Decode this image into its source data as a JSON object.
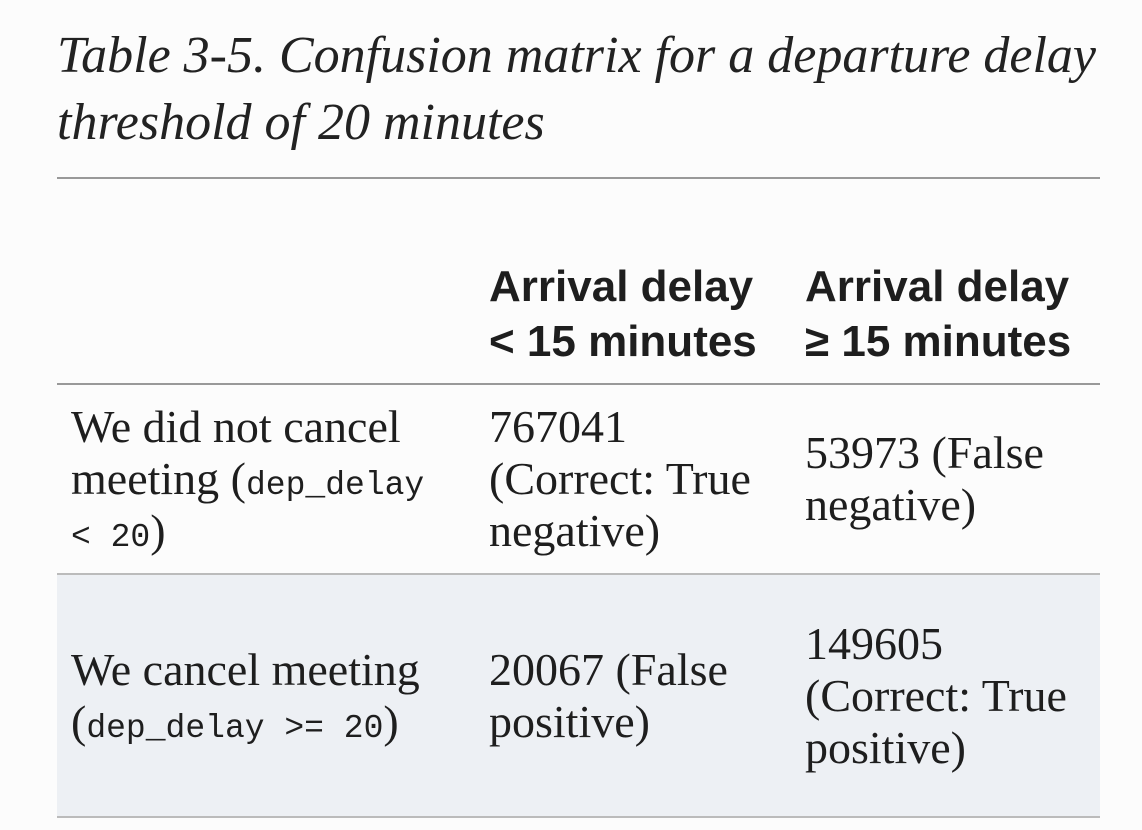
{
  "title": "Table 3-5. Confusion matrix for a departure delay threshold of 20 minutes",
  "table": {
    "header": [
      "Arrival delay < 15 minutes",
      "Arrival delay ≥ 15 minutes"
    ],
    "rows": [
      {
        "label": {
          "text": "We did not cancel meeting (",
          "code": "dep_delay < 20",
          "after": ")"
        },
        "cells": [
          "767041 (Correct: True negative)",
          "53973 (False negative)"
        ]
      },
      {
        "label": {
          "text": "We cancel meeting (",
          "code": "dep_delay >= 20",
          "after": ")"
        },
        "cells": [
          "20067 (False positive)",
          "149605 (Correct: True positive)"
        ]
      }
    ]
  }
}
